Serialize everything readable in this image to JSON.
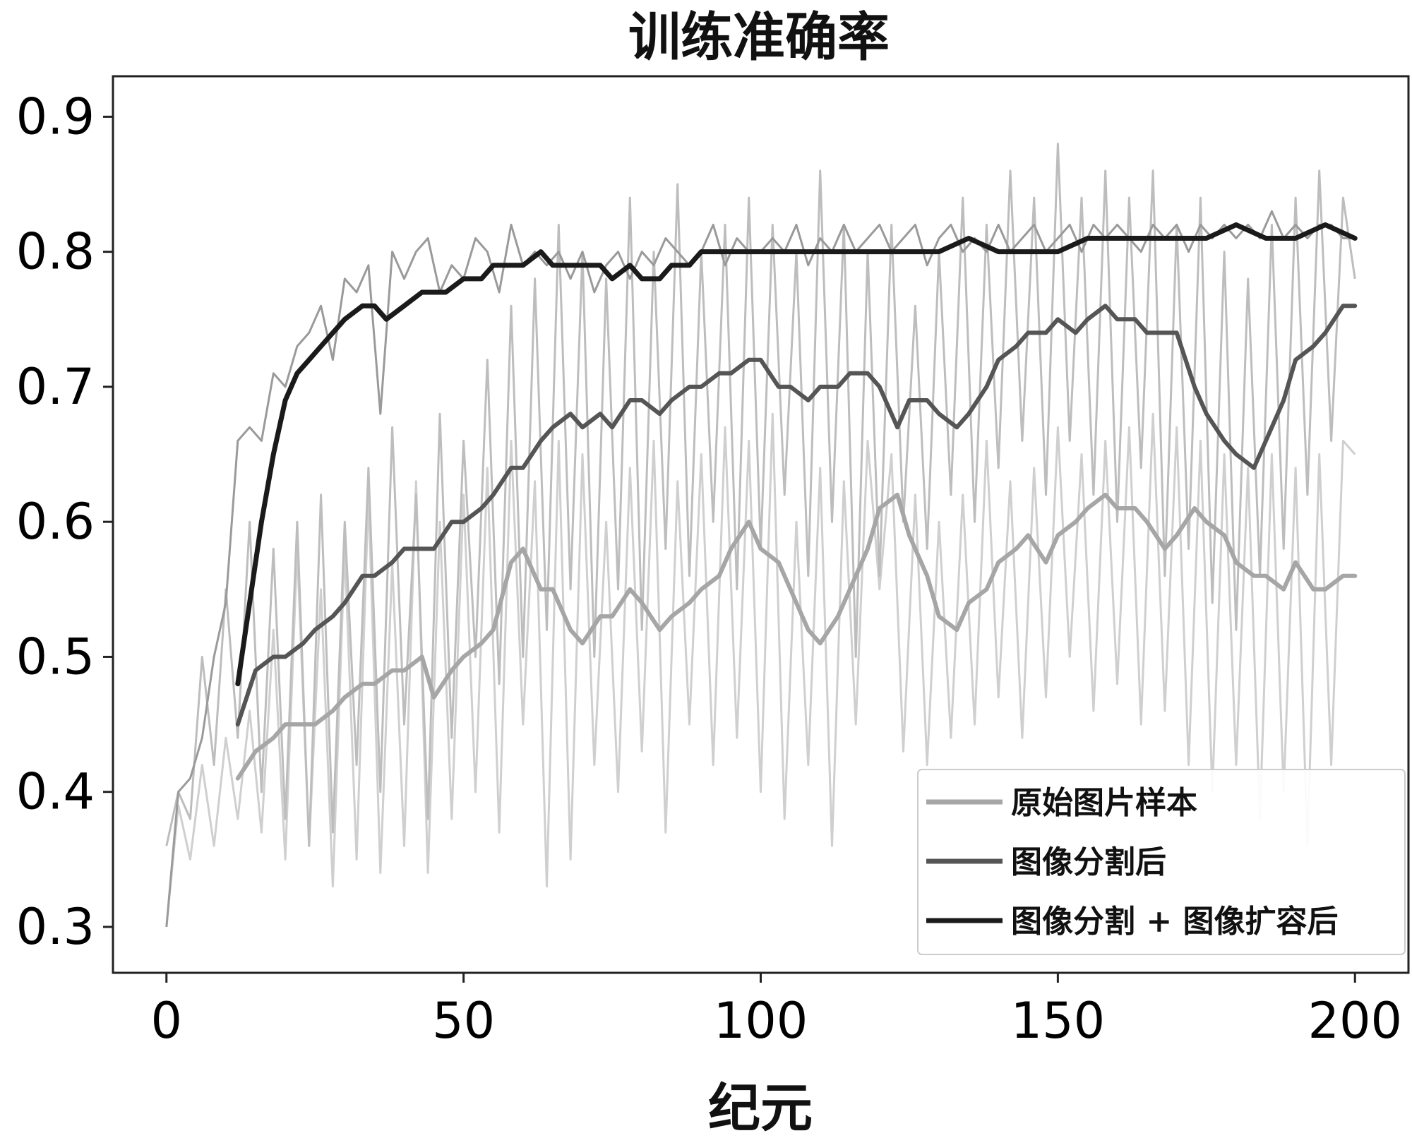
{
  "chart_data": {
    "type": "line",
    "title": "训练准确率",
    "xlabel": "纪元",
    "ylabel": "",
    "xlim": [
      -9,
      209
    ],
    "ylim": [
      0.266,
      0.93
    ],
    "xticks": [
      0,
      50,
      100,
      150,
      200
    ],
    "xtick_labels": [
      "0",
      "50",
      "100",
      "150",
      "200"
    ],
    "yticks": [
      0.3,
      0.4,
      0.5,
      0.6,
      0.7,
      0.8,
      0.9
    ],
    "ytick_labels": [
      "0.3",
      "0.4",
      "0.5",
      "0.6",
      "0.7",
      "0.8",
      "0.9"
    ],
    "grid": false,
    "legend_position": "lower-right",
    "series": [
      {
        "name": "原始图片样本",
        "color": "#a6a6a6",
        "raw_color": "#cfcfcf",
        "smoothed": {
          "x": [
            12,
            15,
            18,
            20,
            23,
            25,
            28,
            30,
            33,
            35,
            38,
            40,
            43,
            45,
            48,
            50,
            53,
            55,
            58,
            60,
            63,
            65,
            68,
            70,
            73,
            75,
            78,
            80,
            83,
            85,
            88,
            90,
            93,
            95,
            98,
            100,
            103,
            105,
            108,
            110,
            113,
            115,
            118,
            120,
            123,
            125,
            128,
            130,
            133,
            135,
            138,
            140,
            143,
            145,
            148,
            150,
            153,
            155,
            158,
            160,
            163,
            165,
            168,
            170,
            173,
            175,
            178,
            180,
            183,
            185,
            188,
            190,
            193,
            195,
            198,
            200
          ],
          "y": [
            0.41,
            0.43,
            0.44,
            0.45,
            0.45,
            0.45,
            0.46,
            0.47,
            0.48,
            0.48,
            0.49,
            0.49,
            0.5,
            0.47,
            0.49,
            0.5,
            0.51,
            0.52,
            0.57,
            0.58,
            0.55,
            0.55,
            0.52,
            0.51,
            0.53,
            0.53,
            0.55,
            0.54,
            0.52,
            0.53,
            0.54,
            0.55,
            0.56,
            0.58,
            0.6,
            0.58,
            0.57,
            0.55,
            0.52,
            0.51,
            0.53,
            0.55,
            0.58,
            0.61,
            0.62,
            0.59,
            0.56,
            0.53,
            0.52,
            0.54,
            0.55,
            0.57,
            0.58,
            0.59,
            0.57,
            0.59,
            0.6,
            0.61,
            0.62,
            0.61,
            0.61,
            0.6,
            0.58,
            0.59,
            0.61,
            0.6,
            0.59,
            0.57,
            0.56,
            0.56,
            0.55,
            0.57,
            0.55,
            0.55,
            0.56,
            0.56
          ]
        },
        "raw": {
          "x": [
            0,
            2,
            4,
            6,
            8,
            10,
            12,
            14,
            16,
            18,
            20,
            22,
            24,
            26,
            28,
            30,
            32,
            34,
            36,
            38,
            40,
            42,
            44,
            46,
            48,
            50,
            52,
            54,
            56,
            58,
            60,
            62,
            64,
            66,
            68,
            70,
            72,
            74,
            76,
            78,
            80,
            82,
            84,
            86,
            88,
            90,
            92,
            94,
            96,
            98,
            100,
            102,
            104,
            106,
            108,
            110,
            112,
            114,
            116,
            118,
            120,
            122,
            124,
            126,
            128,
            130,
            132,
            134,
            136,
            138,
            140,
            142,
            144,
            146,
            148,
            150,
            152,
            154,
            156,
            158,
            160,
            162,
            164,
            166,
            168,
            170,
            172,
            174,
            176,
            178,
            180,
            182,
            184,
            186,
            188,
            190,
            192,
            194,
            196,
            198,
            200
          ],
          "y": [
            0.3,
            0.39,
            0.35,
            0.42,
            0.36,
            0.44,
            0.38,
            0.46,
            0.37,
            0.52,
            0.35,
            0.58,
            0.36,
            0.55,
            0.33,
            0.58,
            0.35,
            0.62,
            0.34,
            0.57,
            0.36,
            0.63,
            0.34,
            0.6,
            0.38,
            0.62,
            0.4,
            0.64,
            0.37,
            0.66,
            0.45,
            0.63,
            0.33,
            0.66,
            0.35,
            0.65,
            0.42,
            0.6,
            0.4,
            0.64,
            0.43,
            0.66,
            0.37,
            0.63,
            0.45,
            0.65,
            0.42,
            0.67,
            0.44,
            0.66,
            0.4,
            0.68,
            0.38,
            0.6,
            0.42,
            0.64,
            0.36,
            0.63,
            0.45,
            0.66,
            0.55,
            0.65,
            0.43,
            0.62,
            0.42,
            0.6,
            0.44,
            0.62,
            0.45,
            0.66,
            0.47,
            0.63,
            0.44,
            0.64,
            0.47,
            0.67,
            0.5,
            0.65,
            0.46,
            0.66,
            0.48,
            0.67,
            0.45,
            0.68,
            0.46,
            0.67,
            0.42,
            0.66,
            0.4,
            0.65,
            0.42,
            0.64,
            0.38,
            0.65,
            0.4,
            0.64,
            0.36,
            0.65,
            0.42,
            0.66,
            0.65
          ]
        }
      },
      {
        "name": "图像分割后",
        "color": "#555555",
        "raw_color": "#bdbdbd",
        "smoothed": {
          "x": [
            12,
            15,
            18,
            20,
            23,
            25,
            28,
            30,
            33,
            35,
            38,
            40,
            43,
            45,
            48,
            50,
            53,
            55,
            58,
            60,
            63,
            65,
            68,
            70,
            73,
            75,
            78,
            80,
            83,
            85,
            88,
            90,
            93,
            95,
            98,
            100,
            103,
            105,
            108,
            110,
            113,
            115,
            118,
            120,
            123,
            125,
            128,
            130,
            133,
            135,
            138,
            140,
            143,
            145,
            148,
            150,
            153,
            155,
            158,
            160,
            163,
            165,
            168,
            170,
            173,
            175,
            178,
            180,
            183,
            185,
            188,
            190,
            193,
            195,
            198,
            200
          ],
          "y": [
            0.45,
            0.49,
            0.5,
            0.5,
            0.51,
            0.52,
            0.53,
            0.54,
            0.56,
            0.56,
            0.57,
            0.58,
            0.58,
            0.58,
            0.6,
            0.6,
            0.61,
            0.62,
            0.64,
            0.64,
            0.66,
            0.67,
            0.68,
            0.67,
            0.68,
            0.67,
            0.69,
            0.69,
            0.68,
            0.69,
            0.7,
            0.7,
            0.71,
            0.71,
            0.72,
            0.72,
            0.7,
            0.7,
            0.69,
            0.7,
            0.7,
            0.71,
            0.71,
            0.7,
            0.67,
            0.69,
            0.69,
            0.68,
            0.67,
            0.68,
            0.7,
            0.72,
            0.73,
            0.74,
            0.74,
            0.75,
            0.74,
            0.75,
            0.76,
            0.75,
            0.75,
            0.74,
            0.74,
            0.74,
            0.7,
            0.68,
            0.66,
            0.65,
            0.64,
            0.66,
            0.69,
            0.72,
            0.73,
            0.74,
            0.76,
            0.76
          ]
        },
        "raw": {
          "x": [
            0,
            2,
            4,
            6,
            8,
            10,
            12,
            14,
            16,
            18,
            20,
            22,
            24,
            26,
            28,
            30,
            32,
            34,
            36,
            38,
            40,
            42,
            44,
            46,
            48,
            50,
            52,
            54,
            56,
            58,
            60,
            62,
            64,
            66,
            68,
            70,
            72,
            74,
            76,
            78,
            80,
            82,
            84,
            86,
            88,
            90,
            92,
            94,
            96,
            98,
            100,
            102,
            104,
            106,
            108,
            110,
            112,
            114,
            116,
            118,
            120,
            122,
            124,
            126,
            128,
            130,
            132,
            134,
            136,
            138,
            140,
            142,
            144,
            146,
            148,
            150,
            152,
            154,
            156,
            158,
            160,
            162,
            164,
            166,
            168,
            170,
            172,
            174,
            176,
            178,
            180,
            182,
            184,
            186,
            188,
            190,
            192,
            194,
            196,
            198,
            200
          ],
          "y": [
            0.36,
            0.4,
            0.38,
            0.5,
            0.42,
            0.55,
            0.44,
            0.6,
            0.4,
            0.58,
            0.38,
            0.6,
            0.36,
            0.62,
            0.37,
            0.6,
            0.42,
            0.64,
            0.4,
            0.67,
            0.45,
            0.62,
            0.38,
            0.68,
            0.44,
            0.66,
            0.5,
            0.72,
            0.48,
            0.76,
            0.5,
            0.78,
            0.52,
            0.82,
            0.55,
            0.8,
            0.5,
            0.78,
            0.55,
            0.84,
            0.52,
            0.8,
            0.58,
            0.85,
            0.56,
            0.8,
            0.6,
            0.82,
            0.55,
            0.84,
            0.58,
            0.82,
            0.62,
            0.8,
            0.56,
            0.86,
            0.6,
            0.82,
            0.5,
            0.8,
            0.56,
            0.82,
            0.6,
            0.76,
            0.58,
            0.8,
            0.62,
            0.84,
            0.6,
            0.82,
            0.64,
            0.86,
            0.66,
            0.84,
            0.62,
            0.88,
            0.66,
            0.84,
            0.62,
            0.86,
            0.6,
            0.84,
            0.64,
            0.86,
            0.56,
            0.82,
            0.58,
            0.84,
            0.54,
            0.8,
            0.52,
            0.78,
            0.56,
            0.82,
            0.58,
            0.84,
            0.62,
            0.86,
            0.66,
            0.84,
            0.78
          ]
        }
      },
      {
        "name": "图像分割 + 图像扩容后",
        "color": "#1a1a1a",
        "raw_color": "#9a9a9a",
        "smoothed": {
          "x": [
            12,
            14,
            16,
            18,
            20,
            22,
            24,
            26,
            28,
            30,
            33,
            35,
            37,
            40,
            43,
            45,
            47,
            50,
            53,
            55,
            58,
            60,
            63,
            65,
            68,
            70,
            73,
            75,
            78,
            80,
            83,
            85,
            88,
            90,
            93,
            95,
            98,
            100,
            105,
            110,
            115,
            120,
            125,
            130,
            135,
            140,
            145,
            150,
            155,
            160,
            165,
            170,
            175,
            180,
            185,
            190,
            195,
            200
          ],
          "y": [
            0.48,
            0.54,
            0.6,
            0.65,
            0.69,
            0.71,
            0.72,
            0.73,
            0.74,
            0.75,
            0.76,
            0.76,
            0.75,
            0.76,
            0.77,
            0.77,
            0.77,
            0.78,
            0.78,
            0.79,
            0.79,
            0.79,
            0.8,
            0.79,
            0.79,
            0.79,
            0.79,
            0.78,
            0.79,
            0.78,
            0.78,
            0.79,
            0.79,
            0.8,
            0.8,
            0.8,
            0.8,
            0.8,
            0.8,
            0.8,
            0.8,
            0.8,
            0.8,
            0.8,
            0.81,
            0.8,
            0.8,
            0.8,
            0.81,
            0.81,
            0.81,
            0.81,
            0.81,
            0.82,
            0.81,
            0.81,
            0.82,
            0.81
          ]
        },
        "raw": {
          "x": [
            0,
            2,
            4,
            6,
            8,
            10,
            12,
            14,
            16,
            18,
            20,
            22,
            24,
            26,
            28,
            30,
            32,
            34,
            36,
            38,
            40,
            42,
            44,
            46,
            48,
            50,
            52,
            54,
            56,
            58,
            60,
            62,
            64,
            66,
            68,
            70,
            72,
            74,
            76,
            78,
            80,
            82,
            84,
            86,
            88,
            90,
            92,
            94,
            96,
            98,
            100,
            102,
            104,
            106,
            108,
            110,
            112,
            114,
            116,
            118,
            120,
            122,
            124,
            126,
            128,
            130,
            132,
            134,
            136,
            138,
            140,
            142,
            144,
            146,
            148,
            150,
            152,
            154,
            156,
            158,
            160,
            162,
            164,
            166,
            168,
            170,
            172,
            174,
            176,
            178,
            180,
            182,
            184,
            186,
            188,
            190,
            192,
            194,
            196,
            198,
            200
          ],
          "y": [
            0.3,
            0.4,
            0.41,
            0.44,
            0.5,
            0.54,
            0.66,
            0.67,
            0.66,
            0.71,
            0.7,
            0.73,
            0.74,
            0.76,
            0.72,
            0.78,
            0.77,
            0.79,
            0.68,
            0.8,
            0.78,
            0.8,
            0.81,
            0.77,
            0.79,
            0.78,
            0.81,
            0.8,
            0.77,
            0.82,
            0.79,
            0.8,
            0.79,
            0.8,
            0.78,
            0.8,
            0.77,
            0.79,
            0.8,
            0.78,
            0.8,
            0.79,
            0.81,
            0.8,
            0.79,
            0.8,
            0.82,
            0.79,
            0.81,
            0.8,
            0.8,
            0.81,
            0.8,
            0.82,
            0.79,
            0.81,
            0.8,
            0.82,
            0.8,
            0.81,
            0.82,
            0.8,
            0.81,
            0.82,
            0.79,
            0.81,
            0.82,
            0.8,
            0.81,
            0.8,
            0.82,
            0.8,
            0.81,
            0.82,
            0.8,
            0.81,
            0.82,
            0.8,
            0.82,
            0.81,
            0.82,
            0.81,
            0.8,
            0.82,
            0.81,
            0.82,
            0.8,
            0.82,
            0.81,
            0.82,
            0.81,
            0.82,
            0.81,
            0.83,
            0.81,
            0.82,
            0.81,
            0.82,
            0.82,
            0.81,
            0.81
          ]
        }
      }
    ]
  }
}
